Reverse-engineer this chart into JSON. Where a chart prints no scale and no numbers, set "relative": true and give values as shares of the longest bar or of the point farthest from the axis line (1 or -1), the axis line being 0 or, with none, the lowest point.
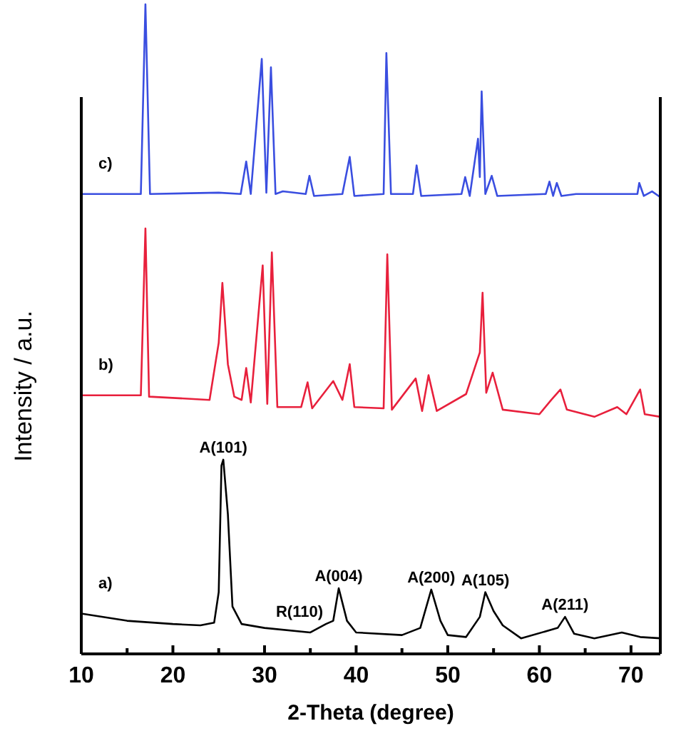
{
  "chart_data": {
    "type": "line",
    "relative": true,
    "xlabel": "2-Theta (degree)",
    "ylabel": "Intensity / a.u.",
    "xlim": [
      10,
      73.2
    ],
    "xticks": [
      10,
      {
        "value": 15,
        "label": null
      },
      20,
      {
        "value": 25,
        "label": null
      },
      30,
      {
        "value": 35,
        "label": null
      },
      40,
      {
        "value": 45,
        "label": null
      },
      50,
      {
        "value": 55,
        "label": null
      },
      60,
      {
        "value": 65,
        "label": null
      },
      70
    ],
    "marker": "none",
    "line_style": "solid",
    "series": [
      {
        "name": "a)",
        "color": "#000000",
        "x": [
          10,
          15,
          20,
          23,
          24.5,
          25,
          25.3,
          25.5,
          26,
          26.5,
          27.5,
          30,
          35,
          36.7,
          37.5,
          38.1,
          39,
          40,
          45,
          47,
          48.2,
          49.2,
          50,
          52,
          53.5,
          54.1,
          55,
          56,
          58,
          62,
          62.8,
          63.8,
          66,
          69,
          71,
          73.2
        ],
        "values": [
          0.062,
          0.051,
          0.046,
          0.044,
          0.048,
          0.095,
          0.29,
          0.299,
          0.215,
          0.073,
          0.046,
          0.04,
          0.033,
          0.046,
          0.051,
          0.101,
          0.051,
          0.033,
          0.029,
          0.04,
          0.099,
          0.051,
          0.029,
          0.026,
          0.057,
          0.095,
          0.066,
          0.044,
          0.024,
          0.04,
          0.057,
          0.031,
          0.024,
          0.033,
          0.026,
          0.024
        ]
      },
      {
        "name": "b)",
        "color": "#e8203c",
        "x": [
          10,
          16.5,
          17,
          17.4,
          24,
          25,
          25.4,
          26,
          26.7,
          27.5,
          28,
          28.5,
          29.8,
          30.3,
          30.8,
          31.4,
          34,
          34.7,
          35.2,
          37.5,
          38.5,
          39.3,
          39.8,
          43,
          43.4,
          43.9,
          46.5,
          47.2,
          47.9,
          48.8,
          52,
          53.5,
          53.8,
          54.2,
          54.9,
          56,
          60,
          61.3,
          62.3,
          63,
          66,
          68.5,
          69.5,
          71,
          71.5,
          73.2
        ],
        "values": [
          0.398,
          0.398,
          0.655,
          0.396,
          0.391,
          0.479,
          0.571,
          0.446,
          0.396,
          0.391,
          0.44,
          0.387,
          0.598,
          0.385,
          0.618,
          0.38,
          0.38,
          0.418,
          0.378,
          0.42,
          0.391,
          0.446,
          0.38,
          0.378,
          0.615,
          0.376,
          0.424,
          0.374,
          0.429,
          0.374,
          0.4,
          0.464,
          0.556,
          0.402,
          0.433,
          0.376,
          0.369,
          0.391,
          0.407,
          0.376,
          0.365,
          0.38,
          0.369,
          0.407,
          0.369,
          0.365
        ]
      },
      {
        "name": "c)",
        "color": "#3a4ee0",
        "x": [
          10,
          16.5,
          17,
          17.5,
          25,
          27.4,
          28,
          28.5,
          29.7,
          30.2,
          30.7,
          31.2,
          32,
          34.5,
          34.9,
          35.4,
          38.5,
          39.3,
          39.8,
          43,
          43.3,
          43.8,
          46.2,
          46.6,
          47.1,
          51.5,
          51.9,
          52.4,
          53.3,
          53.5,
          53.7,
          54.1,
          54.8,
          55.4,
          60.7,
          61.1,
          61.5,
          61.9,
          62.4,
          64,
          70.7,
          70.9,
          71.4,
          72.3,
          73.2
        ],
        "values": [
          0.708,
          0.708,
          1,
          0.708,
          0.71,
          0.708,
          0.758,
          0.708,
          0.916,
          0.71,
          0.903,
          0.708,
          0.712,
          0.708,
          0.736,
          0.705,
          0.708,
          0.765,
          0.705,
          0.708,
          0.925,
          0.708,
          0.708,
          0.752,
          0.705,
          0.708,
          0.734,
          0.705,
          0.793,
          0.734,
          0.866,
          0.708,
          0.736,
          0.705,
          0.708,
          0.727,
          0.705,
          0.725,
          0.705,
          0.708,
          0.708,
          0.725,
          0.705,
          0.712,
          0.703
        ]
      }
    ],
    "annotations": [
      {
        "text": "A(101)",
        "x": 25.5,
        "y": 0.299
      },
      {
        "text": "R(110)",
        "x": 36.7,
        "y": 0.046
      },
      {
        "text": "A(004)",
        "x": 38.1,
        "y": 0.101
      },
      {
        "text": "A(200)",
        "x": 48.2,
        "y": 0.099
      },
      {
        "text": "A(105)",
        "x": 54.1,
        "y": 0.095
      },
      {
        "text": "A(211)",
        "x": 62.8,
        "y": 0.057
      }
    ]
  }
}
